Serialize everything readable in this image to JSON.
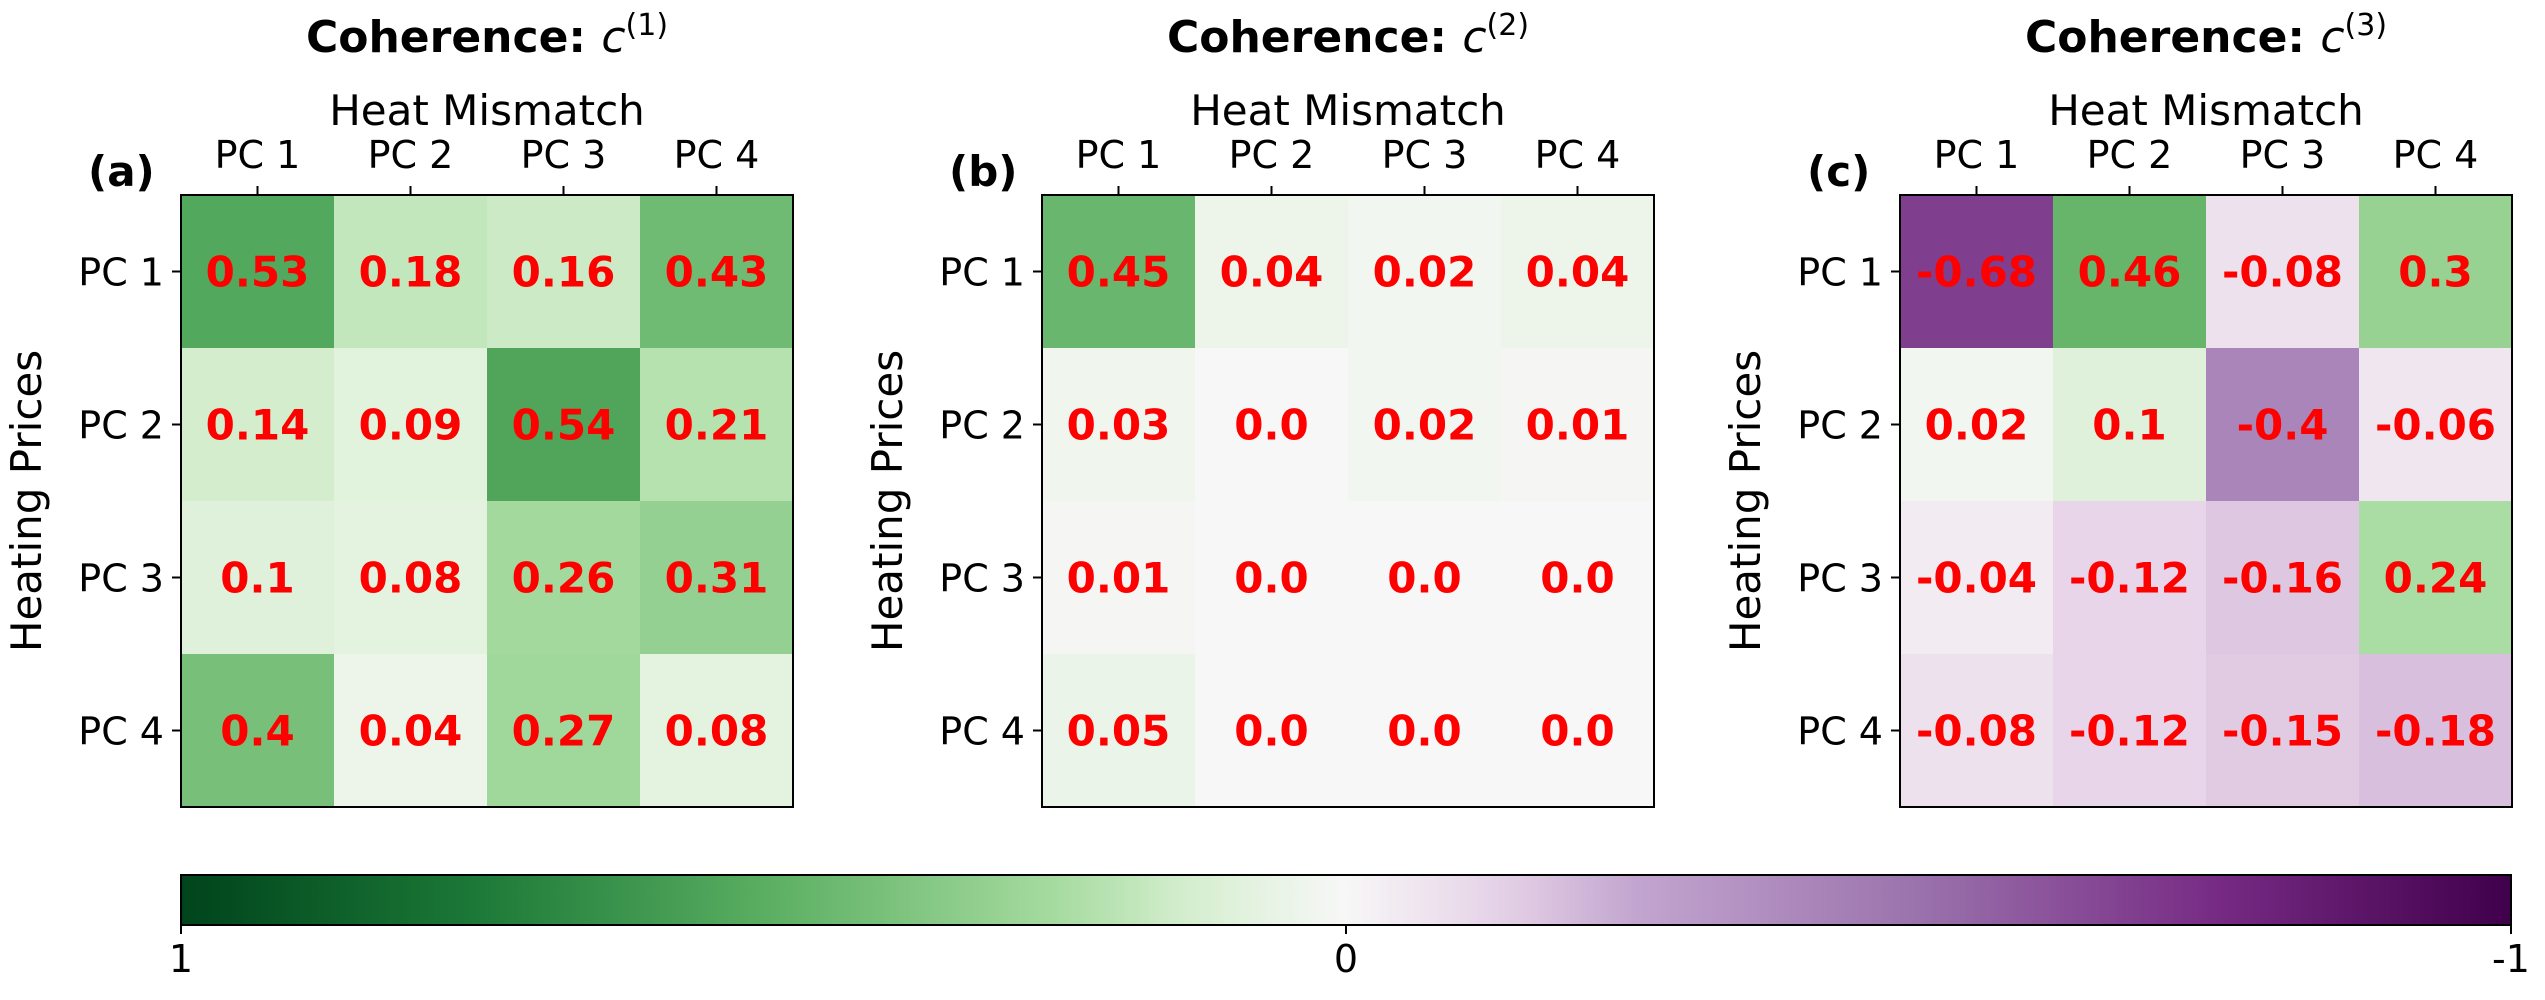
{
  "chart_data": {
    "type": "heatmap",
    "panels": [
      {
        "panel_label": "(a)",
        "title_prefix": "Coherence: ",
        "title_var": "c",
        "title_sup": "(1)",
        "xlabel": "Heat Mismatch",
        "ylabel": "Heating Prices",
        "x_categories": [
          "PC 1",
          "PC 2",
          "PC 3",
          "PC 4"
        ],
        "y_categories": [
          "PC 1",
          "PC 2",
          "PC 3",
          "PC 4"
        ],
        "values": [
          [
            "0.53",
            "0.18",
            "0.16",
            "0.43"
          ],
          [
            "0.14",
            "0.09",
            "0.54",
            "0.21"
          ],
          [
            "0.1",
            "0.08",
            "0.26",
            "0.31"
          ],
          [
            "0.4",
            "0.04",
            "0.27",
            "0.08"
          ]
        ]
      },
      {
        "panel_label": "(b)",
        "title_prefix": "Coherence: ",
        "title_var": "c",
        "title_sup": "(2)",
        "xlabel": "Heat Mismatch",
        "ylabel": "Heating Prices",
        "x_categories": [
          "PC 1",
          "PC 2",
          "PC 3",
          "PC 4"
        ],
        "y_categories": [
          "PC 1",
          "PC 2",
          "PC 3",
          "PC 4"
        ],
        "values": [
          [
            "0.45",
            "0.04",
            "0.02",
            "0.04"
          ],
          [
            "0.03",
            "0.0",
            "0.02",
            "0.01"
          ],
          [
            "0.01",
            "0.0",
            "0.0",
            "0.0"
          ],
          [
            "0.05",
            "0.0",
            "0.0",
            "0.0"
          ]
        ]
      },
      {
        "panel_label": "(c)",
        "title_prefix": "Coherence: ",
        "title_var": "c",
        "title_sup": "(3)",
        "xlabel": "Heat Mismatch",
        "ylabel": "Heating Prices",
        "x_categories": [
          "PC 1",
          "PC 2",
          "PC 3",
          "PC 4"
        ],
        "y_categories": [
          "PC 1",
          "PC 2",
          "PC 3",
          "PC 4"
        ],
        "values": [
          [
            "-0.68",
            "0.46",
            "-0.08",
            "0.3"
          ],
          [
            "0.02",
            "0.1",
            "-0.4",
            "-0.06"
          ],
          [
            "-0.04",
            "-0.12",
            "-0.16",
            "0.24"
          ],
          [
            "-0.08",
            "-0.12",
            "-0.15",
            "-0.18"
          ]
        ]
      }
    ],
    "colorbar": {
      "ticks": [
        "1",
        "0",
        "-1"
      ],
      "range": [
        1,
        -1
      ],
      "colormap": "PRGn (green = positive, purple = negative)"
    },
    "colors": {
      "annotation": "#ff0000",
      "positive_end": "#00441b",
      "midpoint": "#f7f7f7",
      "negative_end": "#40004b"
    }
  }
}
